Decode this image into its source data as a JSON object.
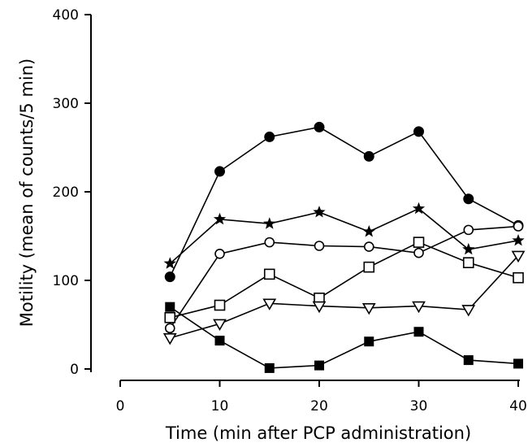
{
  "chart_data": {
    "type": "line",
    "title": "",
    "xlabel": "Time (min after PCP administration)",
    "ylabel": "Motility (mean of counts/5 min)",
    "xlim": [
      0,
      40
    ],
    "ylim": [
      0,
      400
    ],
    "xticks": [
      0,
      10,
      20,
      30,
      40
    ],
    "yticks": [
      0,
      100,
      200,
      300,
      400
    ],
    "grid": false,
    "legend": "none",
    "series": [
      {
        "marker": "filled-circle",
        "x": [
          5,
          10,
          15,
          20,
          25,
          30,
          35,
          40
        ],
        "values": [
          104,
          223,
          262,
          273,
          240,
          268,
          192,
          162
        ]
      },
      {
        "marker": "star",
        "x": [
          5,
          10,
          15,
          20,
          25,
          30,
          35,
          40
        ],
        "values": [
          119,
          169,
          164,
          177,
          155,
          181,
          135,
          145
        ]
      },
      {
        "marker": "open-circle",
        "x": [
          5,
          10,
          15,
          20,
          25,
          30,
          35,
          40
        ],
        "values": [
          46,
          130,
          143,
          139,
          138,
          131,
          157,
          161
        ]
      },
      {
        "marker": "open-square",
        "x": [
          5,
          10,
          15,
          20,
          25,
          30,
          35,
          40
        ],
        "values": [
          58,
          72,
          107,
          80,
          115,
          143,
          120,
          103
        ]
      },
      {
        "marker": "open-triangle-down",
        "x": [
          5,
          10,
          15,
          20,
          25,
          30,
          35,
          40
        ],
        "values": [
          35,
          51,
          74,
          71,
          69,
          71,
          67,
          128
        ]
      },
      {
        "marker": "filled-square",
        "x": [
          5,
          10,
          15,
          20,
          25,
          30,
          35,
          40
        ],
        "values": [
          70,
          32,
          1,
          4,
          31,
          42,
          10,
          6
        ]
      }
    ]
  }
}
